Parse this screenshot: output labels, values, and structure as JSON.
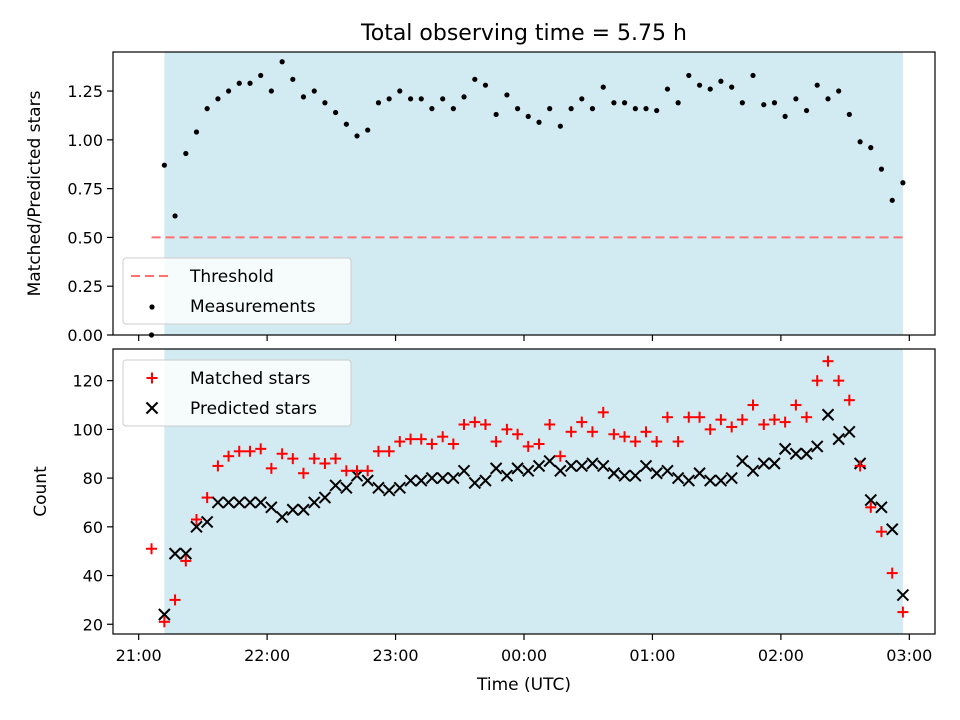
{
  "chart_data": [
    {
      "type": "scatter",
      "title": "Total observing time = 5.75 h",
      "ylabel": "Matched/Predicted stars",
      "xlabel": "",
      "ylim": [
        0,
        1.45
      ],
      "yticks": [
        0.0,
        0.25,
        0.5,
        0.75,
        1.0,
        1.25
      ],
      "ytick_labels": [
        "0.00",
        "0.25",
        "0.50",
        "0.75",
        "1.00",
        "1.25"
      ],
      "x_unit": "hours since 21:00 UTC",
      "shaded_span": [
        0.2,
        5.95
      ],
      "shaded_color": "#add8e6",
      "threshold": {
        "name": "Threshold",
        "value": 0.5,
        "x_range": [
          0.1,
          5.95
        ],
        "color": "#ff7070"
      },
      "legend": {
        "location": "lower left",
        "entries": [
          "Threshold",
          "Measurements"
        ]
      },
      "series": [
        {
          "name": "Measurements",
          "color": "#000000",
          "marker": "dot",
          "x": [
            0.1,
            0.2,
            0.283,
            0.367,
            0.45,
            0.533,
            0.617,
            0.7,
            0.783,
            0.867,
            0.95,
            1.033,
            1.117,
            1.2,
            1.283,
            1.367,
            1.45,
            1.533,
            1.617,
            1.7,
            1.783,
            1.867,
            1.95,
            2.033,
            2.117,
            2.2,
            2.283,
            2.367,
            2.45,
            2.533,
            2.617,
            2.7,
            2.783,
            2.867,
            2.95,
            3.033,
            3.117,
            3.2,
            3.283,
            3.367,
            3.45,
            3.533,
            3.617,
            3.7,
            3.783,
            3.867,
            3.95,
            4.033,
            4.117,
            4.2,
            4.283,
            4.367,
            4.45,
            4.533,
            4.617,
            4.7,
            4.783,
            4.867,
            4.95,
            5.033,
            5.117,
            5.2,
            5.283,
            5.367,
            5.45,
            5.533,
            5.617,
            5.7,
            5.783,
            5.867,
            5.95
          ],
          "y": [
            0.0,
            0.87,
            0.61,
            0.93,
            1.04,
            1.16,
            1.21,
            1.25,
            1.29,
            1.29,
            1.33,
            1.25,
            1.4,
            1.31,
            1.22,
            1.25,
            1.19,
            1.14,
            1.08,
            1.02,
            1.05,
            1.19,
            1.21,
            1.25,
            1.21,
            1.21,
            1.16,
            1.21,
            1.16,
            1.22,
            1.31,
            1.28,
            1.13,
            1.23,
            1.16,
            1.12,
            1.09,
            1.16,
            1.07,
            1.16,
            1.21,
            1.16,
            1.27,
            1.19,
            1.19,
            1.16,
            1.16,
            1.15,
            1.26,
            1.19,
            1.33,
            1.28,
            1.26,
            1.3,
            1.27,
            1.19,
            1.33,
            1.18,
            1.19,
            1.12,
            1.21,
            1.15,
            1.28,
            1.21,
            1.25,
            1.13,
            0.99,
            0.96,
            0.85,
            0.69,
            0.78
          ]
        }
      ]
    },
    {
      "type": "scatter",
      "title": "",
      "ylabel": "Count",
      "xlabel": "Time (UTC)",
      "ylim": [
        16,
        133
      ],
      "yticks": [
        20,
        40,
        60,
        80,
        100,
        120
      ],
      "ytick_labels": [
        "20",
        "40",
        "60",
        "80",
        "100",
        "120"
      ],
      "xlim": [
        -0.2,
        6.2
      ],
      "xticks": [
        0,
        1,
        2,
        3,
        4,
        5,
        6
      ],
      "xtick_labels": [
        "21:00",
        "22:00",
        "23:00",
        "00:00",
        "01:00",
        "02:00",
        "03:00"
      ],
      "x_unit": "hours since 21:00 UTC",
      "shaded_span": [
        0.2,
        5.95
      ],
      "shaded_color": "#add8e6",
      "legend": {
        "location": "upper left",
        "entries": [
          "Matched stars",
          "Predicted stars"
        ]
      },
      "series": [
        {
          "name": "Matched stars",
          "color": "#ff0000",
          "marker": "plus",
          "x": [
            0.1,
            0.2,
            0.283,
            0.367,
            0.45,
            0.533,
            0.617,
            0.7,
            0.783,
            0.867,
            0.95,
            1.033,
            1.117,
            1.2,
            1.283,
            1.367,
            1.45,
            1.533,
            1.617,
            1.7,
            1.783,
            1.867,
            1.95,
            2.033,
            2.117,
            2.2,
            2.283,
            2.367,
            2.45,
            2.533,
            2.617,
            2.7,
            2.783,
            2.867,
            2.95,
            3.033,
            3.117,
            3.2,
            3.283,
            3.367,
            3.45,
            3.533,
            3.617,
            3.7,
            3.783,
            3.867,
            3.95,
            4.033,
            4.117,
            4.2,
            4.283,
            4.367,
            4.45,
            4.533,
            4.617,
            4.7,
            4.783,
            4.867,
            4.95,
            5.033,
            5.117,
            5.2,
            5.283,
            5.367,
            5.45,
            5.533,
            5.617,
            5.7,
            5.783,
            5.867,
            5.95
          ],
          "y": [
            51,
            21,
            30,
            46,
            63,
            72,
            85,
            89,
            91,
            91,
            92,
            84,
            90,
            88,
            82,
            88,
            86,
            88,
            83,
            83,
            83,
            91,
            91,
            95,
            96,
            96,
            94,
            97,
            94,
            102,
            103,
            102,
            95,
            100,
            98,
            93,
            94,
            102,
            89,
            99,
            103,
            99,
            107,
            98,
            97,
            95,
            99,
            95,
            105,
            95,
            105,
            105,
            100,
            104,
            101,
            104,
            110,
            102,
            104,
            103,
            110,
            105,
            120,
            128,
            120,
            112,
            85,
            68,
            58,
            41,
            25
          ]
        },
        {
          "name": "Predicted stars",
          "color": "#000000",
          "marker": "x",
          "x": [
            0.2,
            0.283,
            0.367,
            0.45,
            0.533,
            0.617,
            0.7,
            0.783,
            0.867,
            0.95,
            1.033,
            1.117,
            1.2,
            1.283,
            1.367,
            1.45,
            1.533,
            1.617,
            1.7,
            1.783,
            1.867,
            1.95,
            2.033,
            2.117,
            2.2,
            2.283,
            2.367,
            2.45,
            2.533,
            2.617,
            2.7,
            2.783,
            2.867,
            2.95,
            3.033,
            3.117,
            3.2,
            3.283,
            3.367,
            3.45,
            3.533,
            3.617,
            3.7,
            3.783,
            3.867,
            3.95,
            4.033,
            4.117,
            4.2,
            4.283,
            4.367,
            4.45,
            4.533,
            4.617,
            4.7,
            4.783,
            4.867,
            4.95,
            5.033,
            5.117,
            5.2,
            5.283,
            5.367,
            5.45,
            5.533,
            5.617,
            5.7,
            5.783,
            5.867,
            5.95
          ],
          "y": [
            24,
            49,
            49,
            60,
            62,
            70,
            70,
            70,
            70,
            70,
            68,
            64,
            67,
            67,
            70,
            72,
            77,
            76,
            81,
            79,
            76,
            75,
            76,
            79,
            79,
            80,
            80,
            80,
            83,
            78,
            79,
            84,
            81,
            84,
            83,
            85,
            87,
            83,
            85,
            85,
            86,
            85,
            82,
            81,
            81,
            85,
            82,
            83,
            80,
            79,
            82,
            79,
            79,
            80,
            87,
            83,
            86,
            86,
            92,
            90,
            90,
            93,
            106,
            96,
            99,
            86,
            71,
            68,
            59,
            32
          ]
        }
      ]
    }
  ]
}
